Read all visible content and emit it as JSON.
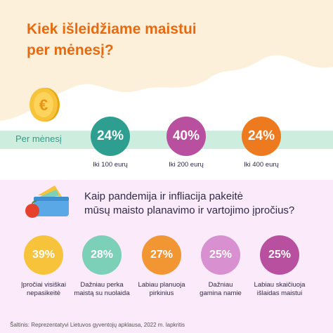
{
  "header": {
    "title_line1": "Kiek išleidžiame maistui",
    "title_line2": "per mėnesį?"
  },
  "monthly": {
    "label": "Per mėnesį",
    "items": [
      {
        "value": "24%",
        "caption": "Iki 100 eurų",
        "color": "#2d9e8f"
      },
      {
        "value": "40%",
        "caption": "Iki 200 eurų",
        "color": "#b84f9f"
      },
      {
        "value": "24%",
        "caption": "Iki 400 eurų",
        "color": "#ee7a1f"
      }
    ]
  },
  "habits": {
    "title_line1": "Kaip pandemija ir infliacija pakeitė",
    "title_line2": "mūsų maisto planavimo ir vartojimo įpročius?",
    "items": [
      {
        "value": "39%",
        "caption_line1": "Įpročiai visiškai",
        "caption_line2": "nepasikeitė",
        "color": "#f7c33b"
      },
      {
        "value": "28%",
        "caption_line1": "Dažniau perka",
        "caption_line2": "maistą su nuolaida",
        "color": "#7dd0b8"
      },
      {
        "value": "27%",
        "caption_line1": "Labiau planuoja",
        "caption_line2": "pirkinius",
        "color": "#f29634"
      },
      {
        "value": "25%",
        "caption_line1": "Dažniau",
        "caption_line2": "gamina namie",
        "color": "#d890d0"
      },
      {
        "value": "25%",
        "caption_line1": "Labiau skaičiuoja",
        "caption_line2": "išlaidas maistui",
        "color": "#b84f9f"
      }
    ]
  },
  "footer": {
    "source": "Šaltinis: Reprezentatyvi Lietuvos gyventojų apklausa, 2022 m. lapkritis"
  },
  "icons": [
    "euro-coin-icon",
    "lunchbox-icon"
  ],
  "colors": {
    "title": "#e86a10",
    "top_background": "#fdf0da",
    "bottom_background": "#fbeafa",
    "stripe": "#cdeede"
  }
}
